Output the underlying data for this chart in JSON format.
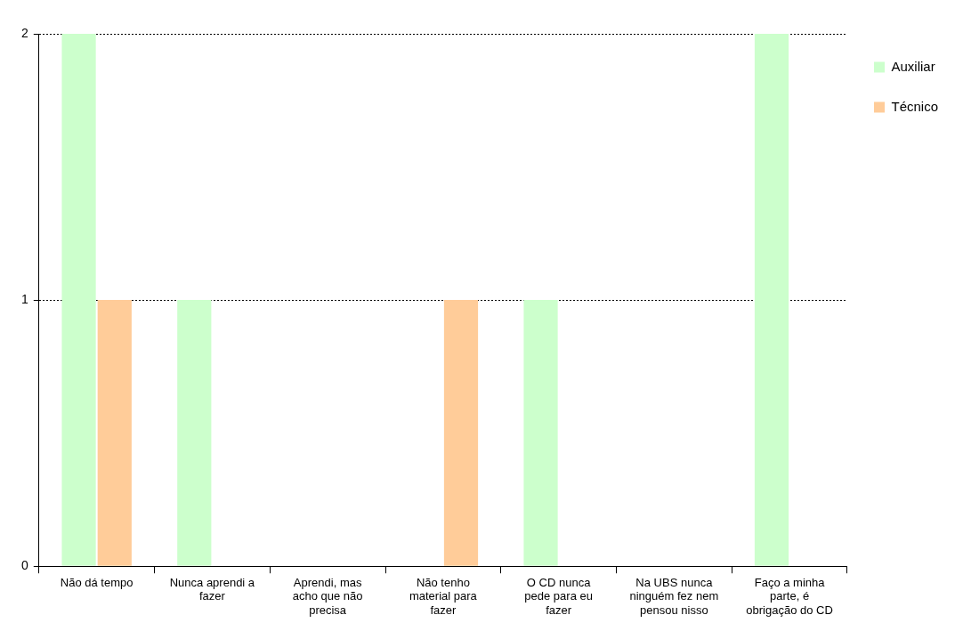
{
  "chart_data": {
    "type": "bar",
    "categories": [
      "Não dá tempo",
      "Nunca aprendi a fazer",
      "Aprendi, mas acho que não precisa",
      "Não tenho material para fazer",
      "O CD nunca pede para eu fazer",
      "Na UBS nunca ninguém fez nem pensou nisso",
      "Faço a minha parte, é obrigação do CD"
    ],
    "series": [
      {
        "name": "Auxiliar",
        "color": "#ccffcc",
        "values": [
          2,
          1,
          0,
          0,
          1,
          0,
          2
        ]
      },
      {
        "name": "Técnico",
        "color": "#ffcc99",
        "values": [
          1,
          0,
          0,
          1,
          0,
          0,
          0
        ]
      }
    ],
    "ylim": [
      0,
      2
    ],
    "yticks": [
      0,
      1,
      2
    ],
    "grid": "y",
    "legend": "top right"
  }
}
